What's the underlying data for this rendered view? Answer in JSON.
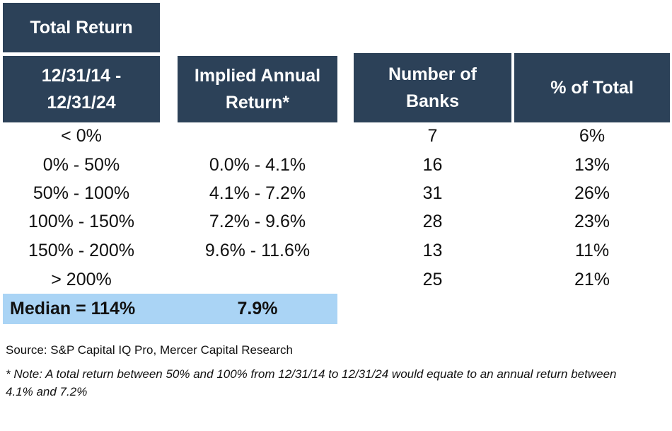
{
  "table": {
    "title": "Total Return",
    "headers": {
      "col1": "12/31/14 -\n12/31/24",
      "col2": "Implied Annual\nReturn*",
      "col3": "Number of\nBanks",
      "col4": "% of Total"
    },
    "rows": [
      {
        "range": "< 0%",
        "annual": "",
        "banks": "7",
        "pct": "6%"
      },
      {
        "range": "0% - 50%",
        "annual": "0.0% - 4.1%",
        "banks": "16",
        "pct": "13%"
      },
      {
        "range": "50% - 100%",
        "annual": "4.1% - 7.2%",
        "banks": "31",
        "pct": "26%"
      },
      {
        "range": "100% - 150%",
        "annual": "7.2% - 9.6%",
        "banks": "28",
        "pct": "23%"
      },
      {
        "range": "150% - 200%",
        "annual": "9.6% - 11.6%",
        "banks": "13",
        "pct": "11%"
      },
      {
        "range": "> 200%",
        "annual": "",
        "banks": "25",
        "pct": "21%"
      }
    ],
    "median": {
      "label": "Median = 114%",
      "value": "7.9%"
    }
  },
  "footer": {
    "source": "Source:  S&P Capital IQ Pro, Mercer Capital Research",
    "note": "* Note:  A total return between 50% and 100% from 12/31/14 to 12/31/24 would equate to an annual return between 4.1% and 7.2%"
  },
  "colors": {
    "header_bg": "#2c4158",
    "header_text": "#ffffff",
    "median_bg": "#aad4f5"
  }
}
